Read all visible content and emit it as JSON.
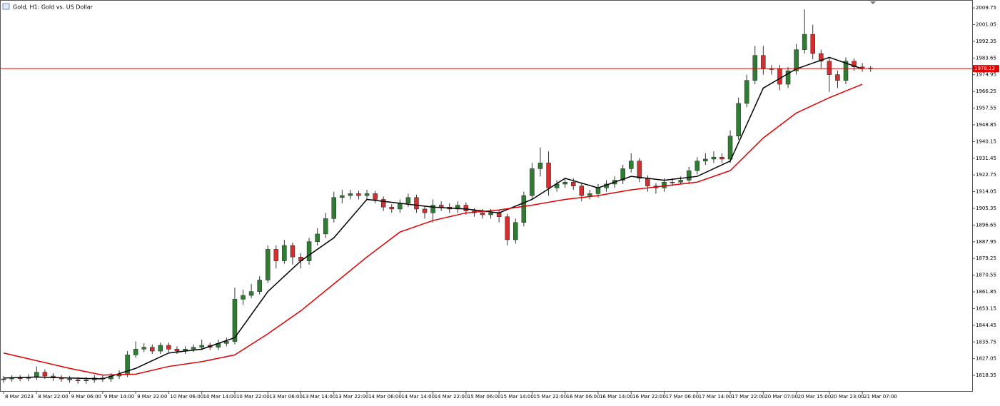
{
  "chart_data": {
    "type": "candlestick",
    "title": "Gold, H1:  Gold vs. US Dollar",
    "up_color": "#2e7d32",
    "down_color": "#d32f2f",
    "wick_color": "#333333",
    "xlim": [
      -0.35,
      117.3
    ],
    "ylim": [
      1810.2,
      2013.5
    ],
    "yticks": [
      2009.75,
      2001.05,
      1992.35,
      1983.65,
      1974.95,
      1966.25,
      1957.55,
      1948.85,
      1940.15,
      1931.45,
      1922.75,
      1914.05,
      1905.35,
      1896.65,
      1887.95,
      1879.25,
      1870.55,
      1861.85,
      1853.15,
      1844.45,
      1835.75,
      1827.05,
      1818.35
    ],
    "xticks": [
      {
        "value": 0,
        "label": "8 Mar 2023"
      },
      {
        "value": 4,
        "label": "8 Mar 22:00"
      },
      {
        "value": 8,
        "label": "9 Mar 06:00"
      },
      {
        "value": 12,
        "label": "9 Mar 14:00"
      },
      {
        "value": 16,
        "label": "9 Mar 22:00"
      },
      {
        "value": 20,
        "label": "10 Mar 06:00"
      },
      {
        "value": 24,
        "label": "10 Mar 14:00"
      },
      {
        "value": 28,
        "label": "10 Mar 22:00"
      },
      {
        "value": 32,
        "label": "13 Mar 06:00"
      },
      {
        "value": 36,
        "label": "13 Mar 14:00"
      },
      {
        "value": 40,
        "label": "13 Mar 22:00"
      },
      {
        "value": 44,
        "label": "14 Mar 06:00"
      },
      {
        "value": 48,
        "label": "14 Mar 14:00"
      },
      {
        "value": 52,
        "label": "14 Mar 22:00"
      },
      {
        "value": 56,
        "label": "15 Mar 06:00"
      },
      {
        "value": 60,
        "label": "15 Mar 14:00"
      },
      {
        "value": 64,
        "label": "15 Mar 22:00"
      },
      {
        "value": 68,
        "label": "16 Mar 06:00"
      },
      {
        "value": 72,
        "label": "16 Mar 14:00"
      },
      {
        "value": 76,
        "label": "16 Mar 22:00"
      },
      {
        "value": 80,
        "label": "17 Mar 06:00"
      },
      {
        "value": 84,
        "label": "17 Mar 14:00"
      },
      {
        "value": 88,
        "label": "17 Mar 22:00"
      },
      {
        "value": 92,
        "label": "20 Mar 07:00"
      },
      {
        "value": 96,
        "label": "20 Mar 15:00"
      },
      {
        "value": 100,
        "label": "20 Mar 23:00"
      },
      {
        "value": 104,
        "label": "21 Mar 07:00"
      }
    ],
    "open": [
      1816,
      1816.5,
      1817,
      1816.8,
      1817.5,
      1820,
      1818,
      1817,
      1816.5,
      1816,
      1815.5,
      1816,
      1817,
      1816.5,
      1818,
      1819,
      1829,
      1832,
      1833,
      1831,
      1834,
      1832,
      1831,
      1832,
      1833,
      1834,
      1833,
      1835,
      1836,
      1858,
      1860,
      1862,
      1868,
      1884,
      1878,
      1886,
      1880,
      1878,
      1888,
      1892,
      1900,
      1911,
      1912,
      1913,
      1912,
      1913,
      1910,
      1906,
      1905,
      1908,
      1911,
      1905,
      1903,
      1907,
      1906,
      1905,
      1907,
      1904,
      1903,
      1902,
      1903,
      1901,
      1889,
      1898,
      1912,
      1926,
      1929,
      1916,
      1918,
      1919,
      1917,
      1912,
      1913,
      1916,
      1918,
      1920,
      1926,
      1930,
      1921,
      1917,
      1916,
      1919,
      1919,
      1920,
      1925,
      1930,
      1931,
      1932,
      1931,
      1943,
      1960,
      1972,
      1985,
      1978,
      1978,
      1970,
      1977,
      1988,
      1996,
      1986,
      1982,
      1975,
      1972,
      1982,
      1979,
      1978.5
    ],
    "high": [
      1818,
      1818.5,
      1818.5,
      1819,
      1823,
      1821.5,
      1819.5,
      1818.5,
      1818,
      1817.5,
      1817.5,
      1818.5,
      1818.5,
      1819.5,
      1821,
      1831,
      1836,
      1835,
      1834.5,
      1835.5,
      1835.5,
      1833.5,
      1833.5,
      1834.5,
      1837,
      1835.5,
      1837,
      1838,
      1864,
      1863,
      1866,
      1870,
      1886,
      1886,
      1889,
      1887.5,
      1882,
      1890,
      1895,
      1903,
      1914,
      1915,
      1915,
      1914.5,
      1915,
      1914.5,
      1911.5,
      1907.5,
      1910,
      1913,
      1912.5,
      1906.5,
      1910,
      1909,
      1908,
      1909,
      1908.5,
      1905.5,
      1905,
      1905,
      1904.5,
      1902.5,
      1900,
      1914,
      1929,
      1937,
      1935,
      1920,
      1921,
      1921,
      1918.5,
      1915,
      1918,
      1920,
      1922,
      1928,
      1934,
      1931.5,
      1922.5,
      1918.5,
      1921,
      1921,
      1922,
      1927,
      1932,
      1934,
      1935,
      1934,
      1946,
      1963,
      1975,
      1990,
      1990,
      1980,
      1980,
      1979,
      1991,
      2009,
      2001,
      1988,
      1984,
      1977,
      1984,
      1983.5,
      1981,
      1979.5
    ],
    "low": [
      1814.5,
      1815,
      1815.3,
      1815.3,
      1816,
      1816.5,
      1815.5,
      1815,
      1814.5,
      1814,
      1814,
      1814.5,
      1815,
      1815,
      1816.5,
      1817.5,
      1827.5,
      1830.5,
      1829.5,
      1829.5,
      1830.5,
      1829.5,
      1829.5,
      1830.5,
      1831.5,
      1831.5,
      1831.5,
      1833.5,
      1834.5,
      1855,
      1858.5,
      1860.5,
      1866.5,
      1874,
      1876.5,
      1876,
      1874,
      1876,
      1886,
      1890,
      1898,
      1908,
      1910,
      1910,
      1910,
      1908,
      1904,
      1903,
      1903,
      1906,
      1903,
      1900,
      1898,
      1904,
      1903,
      1903,
      1902,
      1901,
      1900,
      1900,
      1898,
      1886,
      1887,
      1896,
      1910,
      1922,
      1912,
      1914,
      1916,
      1915,
      1909,
      1910,
      1911,
      1914,
      1916,
      1918,
      1924,
      1919,
      1914,
      1913,
      1914,
      1917,
      1918,
      1918,
      1923,
      1928,
      1929,
      1929,
      1929,
      1941,
      1958,
      1970,
      1975,
      1975,
      1967,
      1968,
      1975,
      1986,
      1983,
      1978,
      1966,
      1968,
      1970,
      1977,
      1976.5,
      1976.5
    ],
    "close": [
      1816.5,
      1817,
      1816.8,
      1817.5,
      1820,
      1818,
      1817,
      1816.5,
      1816,
      1815.5,
      1816,
      1817,
      1816.5,
      1818,
      1819,
      1829,
      1832,
      1833,
      1831,
      1834,
      1832,
      1831,
      1832,
      1833,
      1834,
      1833,
      1835,
      1836,
      1858,
      1860,
      1862,
      1868,
      1884,
      1878,
      1886,
      1880,
      1878,
      1888,
      1892,
      1900,
      1911,
      1912,
      1913,
      1912,
      1913,
      1910,
      1906,
      1905,
      1908,
      1911,
      1905,
      1903,
      1907,
      1906,
      1905,
      1907,
      1904,
      1903,
      1902,
      1903,
      1901,
      1889,
      1898,
      1912,
      1926,
      1929,
      1916,
      1918,
      1919,
      1917,
      1912,
      1913,
      1916,
      1918,
      1920,
      1926,
      1930,
      1921,
      1917,
      1916,
      1919,
      1919,
      1920,
      1925,
      1930,
      1931,
      1932,
      1931,
      1943,
      1960,
      1972,
      1985,
      1978,
      1978,
      1970,
      1977,
      1988,
      1996,
      1986,
      1982,
      1975,
      1972,
      1982,
      1979,
      1978.5,
      1978.1
    ],
    "lines": [
      {
        "color": "#000000",
        "x": [
          0,
          4,
          8,
          12,
          16,
          20,
          24,
          28,
          32,
          36,
          40,
          44,
          48,
          52,
          56,
          60,
          64,
          68,
          72,
          76,
          80,
          84,
          88,
          92,
          96,
          100,
          104
        ],
        "values": [
          1817,
          1817.5,
          1817,
          1816.5,
          1822,
          1830,
          1832,
          1838,
          1862,
          1878,
          1890,
          1910,
          1908,
          1906,
          1905,
          1903,
          1910,
          1921,
          1916,
          1922,
          1920,
          1922,
          1930,
          1968,
          1978,
          1984,
          1978
        ]
      },
      {
        "color": "#e00000",
        "x": [
          0,
          4,
          8,
          12,
          16,
          20,
          24,
          28,
          32,
          36,
          40,
          44,
          48,
          52,
          56,
          60,
          64,
          68,
          72,
          76,
          80,
          84,
          88,
          92,
          96,
          100,
          104
        ],
        "values": [
          1830,
          1826,
          1822,
          1818.5,
          1819,
          1823,
          1825.5,
          1829,
          1840,
          1852,
          1866,
          1880,
          1893,
          1899,
          1903,
          1904.5,
          1907,
          1910,
          1912,
          1915,
          1917,
          1919,
          1925,
          1942,
          1955,
          1963,
          1970
        ]
      }
    ],
    "price_line": {
      "value": 1978.13,
      "color": "#e00000"
    }
  }
}
